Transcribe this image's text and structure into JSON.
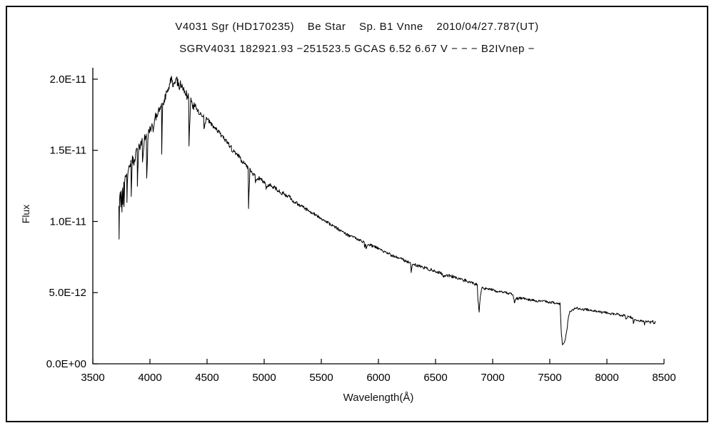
{
  "colors": {
    "background": "#ffffff",
    "line": "#000000",
    "axis": "#000000"
  },
  "chart_data": {
    "type": "line",
    "title_line1": "V4031 Sgr (HD170235)    Be Star    Sp. B1 Vnne    2010/04/27.787(UT)",
    "title_line2": "SGRV4031 182921.93 −251523.5 GCAS 6.52 6.67 V − − − B2IVnep −",
    "xlabel": "Wavelength(Å)",
    "ylabel": "Flux",
    "xlim": [
      3500,
      8500
    ],
    "ylim_flux": [
      0,
      2.08e-11
    ],
    "grid": false,
    "legend": "none",
    "x_ticks": [
      3500,
      4000,
      4500,
      5000,
      5500,
      6000,
      6500,
      7000,
      7500,
      8000,
      8500
    ],
    "y_ticks": [
      {
        "value": 0.0,
        "label": "0.0E+00"
      },
      {
        "value": 5e-12,
        "label": "5.0E-12"
      },
      {
        "value": 1e-11,
        "label": "1.0E-11"
      },
      {
        "value": 1.5e-11,
        "label": "1.5E-11"
      },
      {
        "value": 2e-11,
        "label": "2.0E-11"
      }
    ],
    "series": [
      {
        "name": "V4031 Sgr spectrum",
        "flux_scale": 1e-12,
        "points_wavelength_flux": [
          [
            3728,
            10.8
          ],
          [
            3730,
            8.5
          ],
          [
            3734,
            11.4
          ],
          [
            3740,
            11.8
          ],
          [
            3745,
            11.0
          ],
          [
            3749,
            12.1
          ],
          [
            3755,
            10.9
          ],
          [
            3760,
            12.3
          ],
          [
            3764,
            11.4
          ],
          [
            3771,
            12.7
          ],
          [
            3773,
            11.1
          ],
          [
            3779,
            12.9
          ],
          [
            3788,
            13.2
          ],
          [
            3797,
            13.3
          ],
          [
            3799,
            11.4
          ],
          [
            3806,
            13.5
          ],
          [
            3820,
            13.8
          ],
          [
            3834,
            14.1
          ],
          [
            3836,
            11.9
          ],
          [
            3846,
            14.4
          ],
          [
            3860,
            14.2
          ],
          [
            3875,
            14.7
          ],
          [
            3888,
            15.0
          ],
          [
            3890,
            12.4
          ],
          [
            3900,
            15.2
          ],
          [
            3920,
            15.4
          ],
          [
            3932,
            15.6
          ],
          [
            3935,
            14.1
          ],
          [
            3950,
            15.8
          ],
          [
            3969,
            16.0
          ],
          [
            3971,
            13.0
          ],
          [
            3985,
            16.2
          ],
          [
            4000,
            16.5
          ],
          [
            4015,
            16.7
          ],
          [
            4025,
            16.9
          ],
          [
            4028,
            16.1
          ],
          [
            4045,
            17.3
          ],
          [
            4070,
            17.6
          ],
          [
            4090,
            17.9
          ],
          [
            4101,
            18.0
          ],
          [
            4103,
            15.0
          ],
          [
            4112,
            18.2
          ],
          [
            4125,
            18.5
          ],
          [
            4140,
            18.8
          ],
          [
            4160,
            19.3
          ],
          [
            4175,
            19.7
          ],
          [
            4185,
            20.0
          ],
          [
            4200,
            19.7
          ],
          [
            4215,
            19.9
          ],
          [
            4226,
            20.1
          ],
          [
            4240,
            19.8
          ],
          [
            4255,
            19.5
          ],
          [
            4270,
            19.7
          ],
          [
            4285,
            19.3
          ],
          [
            4300,
            19.1
          ],
          [
            4320,
            18.9
          ],
          [
            4339,
            18.7
          ],
          [
            4342,
            15.1
          ],
          [
            4355,
            18.5
          ],
          [
            4375,
            18.2
          ],
          [
            4395,
            18.0
          ],
          [
            4415,
            17.8
          ],
          [
            4435,
            17.6
          ],
          [
            4455,
            17.5
          ],
          [
            4470,
            17.4
          ],
          [
            4473,
            16.5
          ],
          [
            4490,
            17.2
          ],
          [
            4510,
            17.1
          ],
          [
            4530,
            16.9
          ],
          [
            4550,
            16.7
          ],
          [
            4570,
            16.5
          ],
          [
            4590,
            16.4
          ],
          [
            4610,
            16.2
          ],
          [
            4630,
            16.0
          ],
          [
            4650,
            15.8
          ],
          [
            4670,
            15.6
          ],
          [
            4690,
            15.4
          ],
          [
            4712,
            15.2
          ],
          [
            4715,
            14.8
          ],
          [
            4730,
            15.0
          ],
          [
            4750,
            14.8
          ],
          [
            4775,
            14.6
          ],
          [
            4800,
            14.3
          ],
          [
            4825,
            14.1
          ],
          [
            4845,
            13.9
          ],
          [
            4860,
            13.8
          ],
          [
            4863,
            11.0
          ],
          [
            4875,
            13.6
          ],
          [
            4895,
            13.4
          ],
          [
            4920,
            13.2
          ],
          [
            4923,
            12.7
          ],
          [
            4940,
            13.1
          ],
          [
            4960,
            13.0
          ],
          [
            4980,
            12.9
          ],
          [
            5000,
            12.8
          ],
          [
            5014,
            12.7
          ],
          [
            5017,
            12.3
          ],
          [
            5040,
            12.6
          ],
          [
            5070,
            12.5
          ],
          [
            5100,
            12.3
          ],
          [
            5140,
            12.1
          ],
          [
            5180,
            11.9
          ],
          [
            5220,
            11.7
          ],
          [
            5260,
            11.4
          ],
          [
            5300,
            11.2
          ],
          [
            5340,
            11.0
          ],
          [
            5380,
            10.8
          ],
          [
            5420,
            10.6
          ],
          [
            5460,
            10.4
          ],
          [
            5500,
            10.2
          ],
          [
            5540,
            10.0
          ],
          [
            5580,
            9.8
          ],
          [
            5620,
            9.6
          ],
          [
            5660,
            9.4
          ],
          [
            5700,
            9.2
          ],
          [
            5740,
            9.0
          ],
          [
            5780,
            8.9
          ],
          [
            5820,
            8.7
          ],
          [
            5860,
            8.6
          ],
          [
            5875,
            8.5
          ],
          [
            5878,
            8.1
          ],
          [
            5889,
            8.4
          ],
          [
            5892,
            8.0
          ],
          [
            5910,
            8.4
          ],
          [
            5940,
            8.3
          ],
          [
            5970,
            8.2
          ],
          [
            6000,
            8.1
          ],
          [
            6040,
            7.9
          ],
          [
            6080,
            7.8
          ],
          [
            6120,
            7.6
          ],
          [
            6160,
            7.5
          ],
          [
            6200,
            7.4
          ],
          [
            6240,
            7.2
          ],
          [
            6270,
            7.1
          ],
          [
            6283,
            7.0
          ],
          [
            6287,
            6.4
          ],
          [
            6300,
            7.0
          ],
          [
            6340,
            6.9
          ],
          [
            6380,
            6.8
          ],
          [
            6420,
            6.7
          ],
          [
            6460,
            6.6
          ],
          [
            6500,
            6.5
          ],
          [
            6540,
            6.4
          ],
          [
            6560,
            6.3
          ],
          [
            6566,
            6.1
          ],
          [
            6590,
            6.2
          ],
          [
            6620,
            6.2
          ],
          [
            6660,
            6.1
          ],
          [
            6700,
            6.0
          ],
          [
            6740,
            5.9
          ],
          [
            6780,
            5.8
          ],
          [
            6820,
            5.7
          ],
          [
            6850,
            5.6
          ],
          [
            6865,
            5.6
          ],
          [
            6872,
            4.4
          ],
          [
            6882,
            3.7
          ],
          [
            6892,
            4.8
          ],
          [
            6905,
            5.3
          ],
          [
            6930,
            5.3
          ],
          [
            6960,
            5.2
          ],
          [
            7000,
            5.2
          ],
          [
            7040,
            5.1
          ],
          [
            7080,
            5.1
          ],
          [
            7120,
            5.0
          ],
          [
            7160,
            4.9
          ],
          [
            7180,
            4.8
          ],
          [
            7190,
            4.3
          ],
          [
            7210,
            4.6
          ],
          [
            7240,
            4.6
          ],
          [
            7270,
            4.6
          ],
          [
            7300,
            4.5
          ],
          [
            7340,
            4.5
          ],
          [
            7380,
            4.4
          ],
          [
            7420,
            4.4
          ],
          [
            7460,
            4.4
          ],
          [
            7500,
            4.3
          ],
          [
            7540,
            4.3
          ],
          [
            7570,
            4.2
          ],
          [
            7590,
            4.2
          ],
          [
            7602,
            2.0
          ],
          [
            7612,
            1.3
          ],
          [
            7622,
            1.5
          ],
          [
            7635,
            1.7
          ],
          [
            7650,
            2.4
          ],
          [
            7665,
            3.4
          ],
          [
            7680,
            3.7
          ],
          [
            7700,
            3.8
          ],
          [
            7730,
            3.9
          ],
          [
            7760,
            3.9
          ],
          [
            7800,
            3.8
          ],
          [
            7840,
            3.8
          ],
          [
            7880,
            3.7
          ],
          [
            7920,
            3.7
          ],
          [
            7960,
            3.6
          ],
          [
            8000,
            3.6
          ],
          [
            8040,
            3.5
          ],
          [
            8080,
            3.5
          ],
          [
            8120,
            3.4
          ],
          [
            8160,
            3.4
          ],
          [
            8166,
            3.2
          ],
          [
            8180,
            3.3
          ],
          [
            8200,
            3.3
          ],
          [
            8225,
            3.2
          ],
          [
            8232,
            2.9
          ],
          [
            8245,
            3.1
          ],
          [
            8260,
            3.1
          ],
          [
            8280,
            3.0
          ],
          [
            8300,
            3.0
          ],
          [
            8315,
            3.0
          ],
          [
            8326,
            3.0
          ],
          [
            8329,
            2.8
          ],
          [
            8340,
            3.0
          ],
          [
            8350,
            2.9
          ],
          [
            8360,
            3.0
          ],
          [
            8380,
            2.9
          ],
          [
            8400,
            3.0
          ],
          [
            8415,
            2.8
          ],
          [
            8425,
            3.0
          ]
        ]
      }
    ]
  }
}
